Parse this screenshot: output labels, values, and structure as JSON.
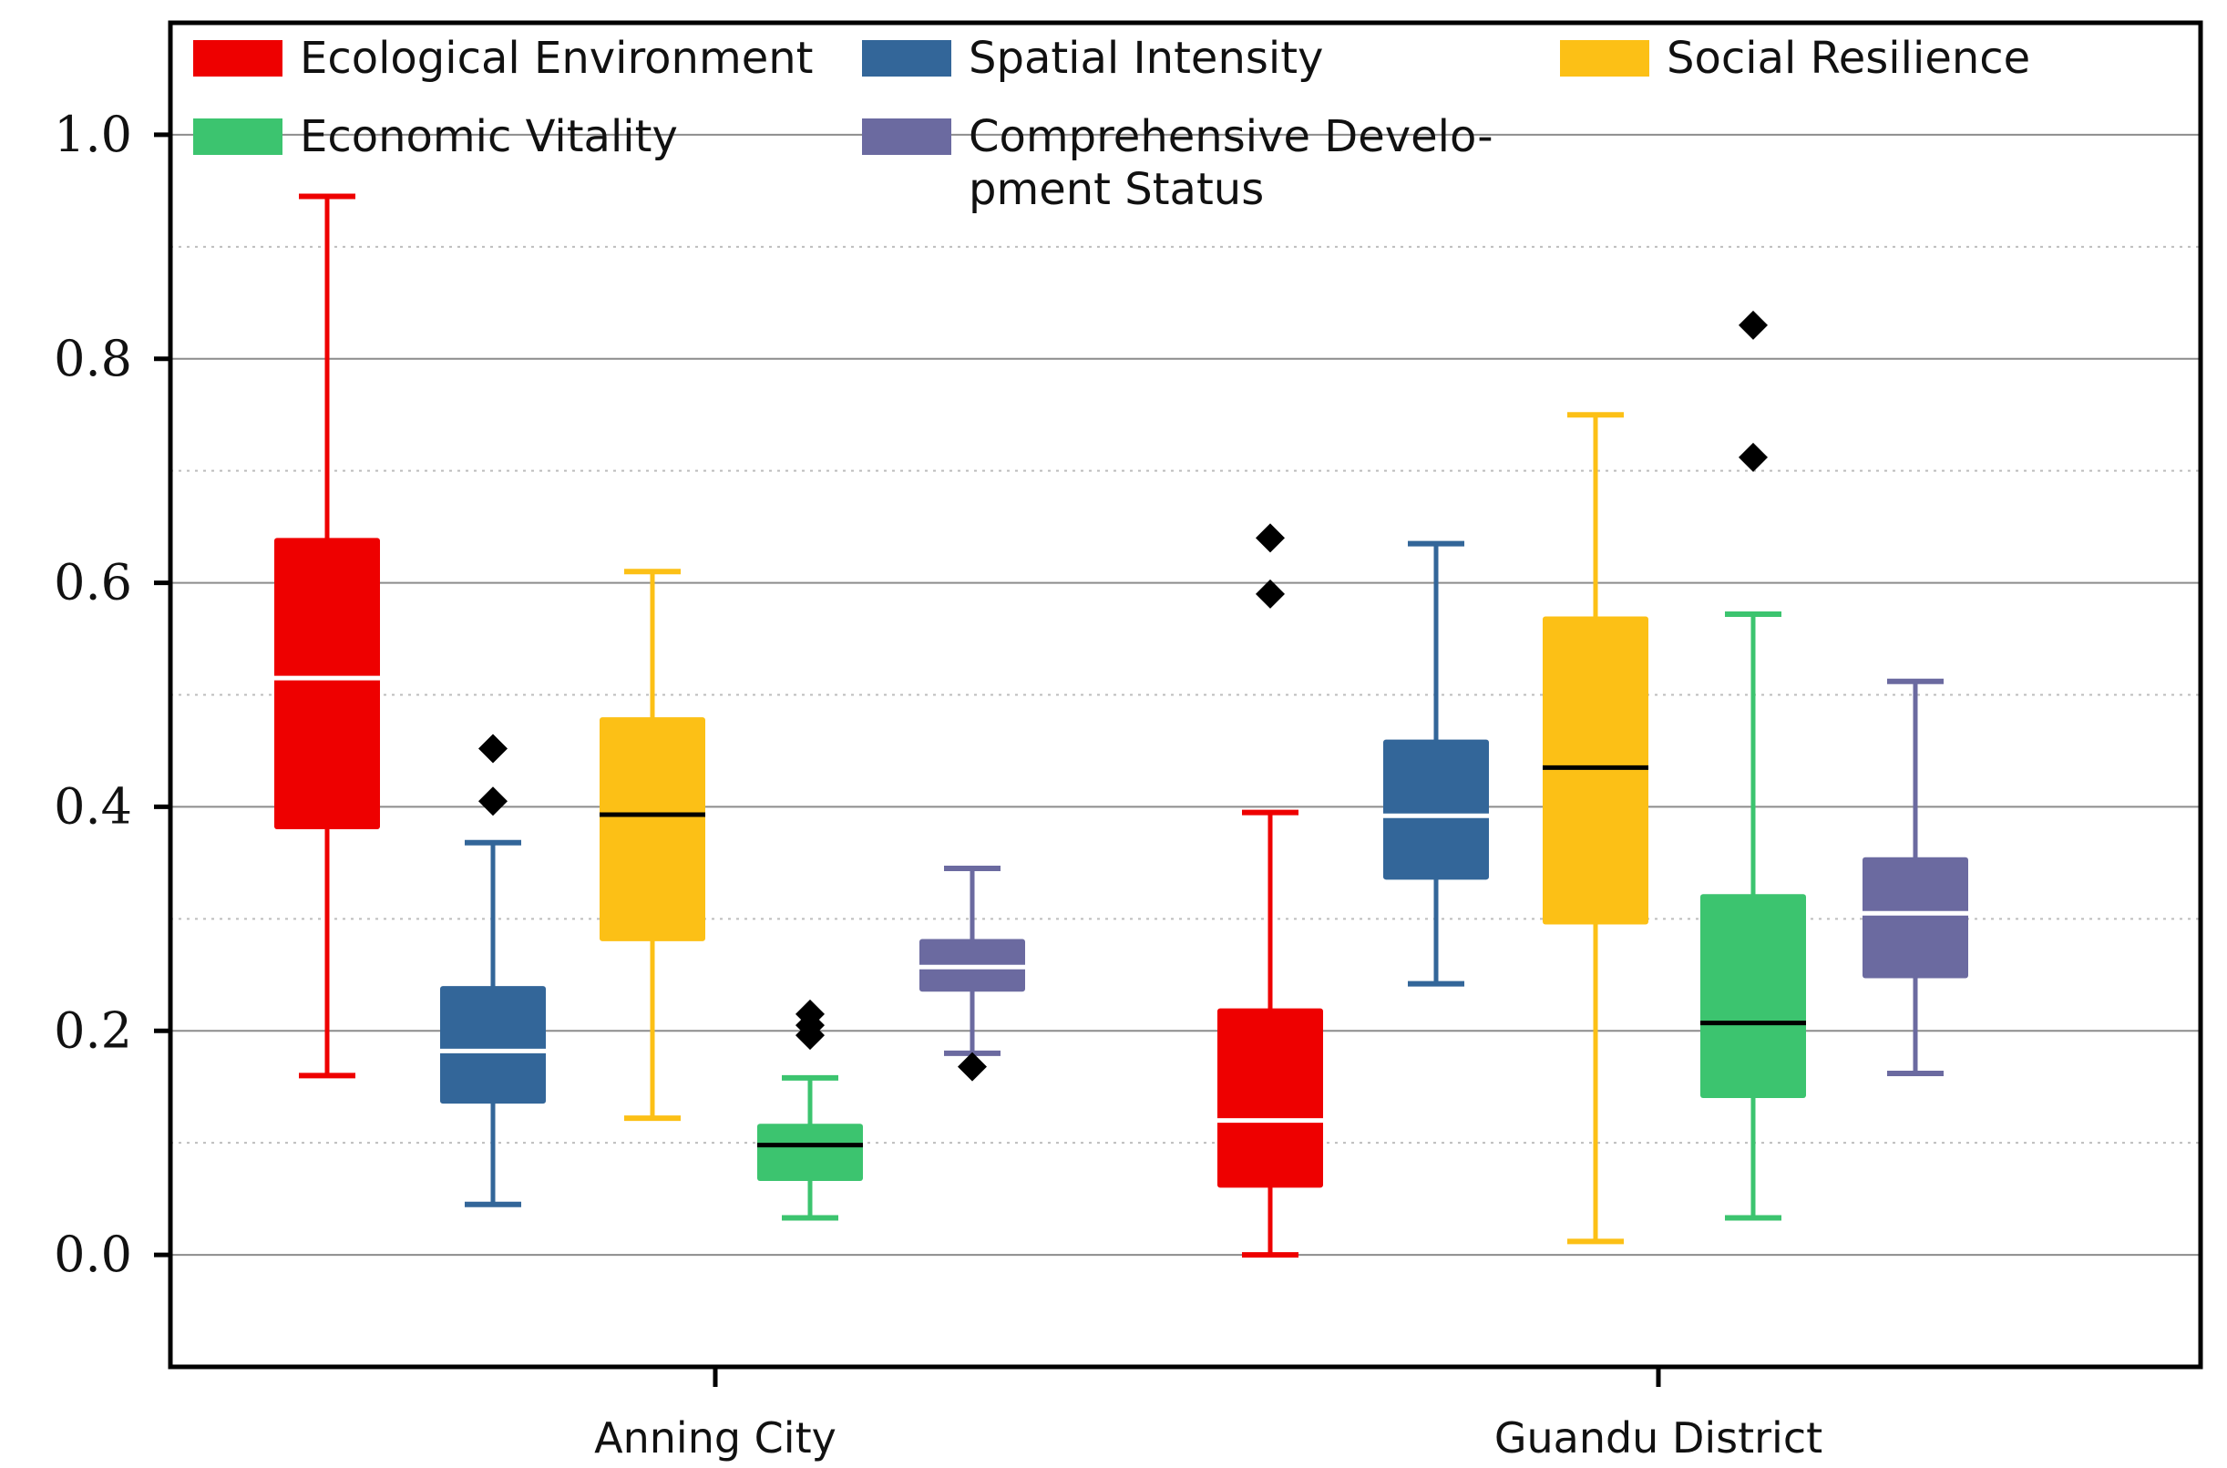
{
  "chart_data": {
    "type": "boxplot",
    "title": "",
    "xlabel": "",
    "ylabel": "",
    "ylim": [
      -0.1,
      1.1
    ],
    "yticks": [
      "0.0",
      "0.2",
      "0.4",
      "0.6",
      "0.8",
      "1.0"
    ],
    "ytick_values": [
      0.0,
      0.2,
      0.4,
      0.6,
      0.8,
      1.0
    ],
    "grid": "horizontal, solid at major ticks, dotted at minor ticks",
    "categories": [
      "Anning City",
      "Guandu District"
    ],
    "legend": {
      "placement": "top",
      "entries": [
        {
          "name": "Ecological Environment",
          "lines": [
            "Ecological Environment"
          ],
          "color": "#ee0000"
        },
        {
          "name": "Spatial Intensity",
          "lines": [
            "Spatial Intensity"
          ],
          "color": "#336699"
        },
        {
          "name": "Social Resilience",
          "lines": [
            "Social Resilience"
          ],
          "color": "#fcc016"
        },
        {
          "name": "Economic Vitality",
          "lines": [
            "Economic Vitality"
          ],
          "color": "#3cc46f"
        },
        {
          "name": "Comprehensive Development Status",
          "lines": [
            "Comprehensive Develo-",
            "pment Status"
          ],
          "color": "#6b6aa0"
        }
      ]
    },
    "series": [
      {
        "name": "Ecological Environment",
        "color": "#ee0000",
        "median_color": "#ffffff",
        "boxes": [
          {
            "category": "Anning City",
            "whisker_low": 0.16,
            "q1": 0.38,
            "median": 0.515,
            "q3": 0.64,
            "whisker_high": 0.945,
            "outliers": []
          },
          {
            "category": "Guandu District",
            "whisker_low": 0.0,
            "q1": 0.06,
            "median": 0.12,
            "q3": 0.22,
            "whisker_high": 0.395,
            "outliers": [
              0.59,
              0.64
            ]
          }
        ]
      },
      {
        "name": "Spatial Intensity",
        "color": "#336699",
        "median_color": "#ffffff",
        "boxes": [
          {
            "category": "Anning City",
            "whisker_low": 0.045,
            "q1": 0.135,
            "median": 0.182,
            "q3": 0.24,
            "whisker_high": 0.368,
            "outliers": [
              0.405,
              0.452
            ]
          },
          {
            "category": "Guandu District",
            "whisker_low": 0.242,
            "q1": 0.335,
            "median": 0.392,
            "q3": 0.46,
            "whisker_high": 0.635,
            "outliers": []
          }
        ]
      },
      {
        "name": "Social Resilience",
        "color": "#fcc016",
        "median_color": "#000000",
        "boxes": [
          {
            "category": "Anning City",
            "whisker_low": 0.122,
            "q1": 0.28,
            "median": 0.393,
            "q3": 0.48,
            "whisker_high": 0.61,
            "outliers": []
          },
          {
            "category": "Guandu District",
            "whisker_low": 0.012,
            "q1": 0.295,
            "median": 0.435,
            "q3": 0.57,
            "whisker_high": 0.75,
            "outliers": []
          }
        ]
      },
      {
        "name": "Economic Vitality",
        "color": "#3cc46f",
        "median_color": "#000000",
        "boxes": [
          {
            "category": "Anning City",
            "whisker_low": 0.033,
            "q1": 0.066,
            "median": 0.098,
            "q3": 0.117,
            "whisker_high": 0.158,
            "outliers": [
              0.196,
              0.205,
              0.215
            ]
          },
          {
            "category": "Guandu District",
            "whisker_low": 0.033,
            "q1": 0.14,
            "median": 0.207,
            "q3": 0.322,
            "whisker_high": 0.572,
            "outliers": [
              0.712,
              0.83
            ]
          }
        ]
      },
      {
        "name": "Comprehensive Development Status",
        "color": "#6b6aa0",
        "median_color": "#ffffff",
        "boxes": [
          {
            "category": "Anning City",
            "whisker_low": 0.18,
            "q1": 0.235,
            "median": 0.257,
            "q3": 0.282,
            "whisker_high": 0.345,
            "outliers": [
              0.168
            ]
          },
          {
            "category": "Guandu District",
            "whisker_low": 0.162,
            "q1": 0.247,
            "median": 0.305,
            "q3": 0.355,
            "whisker_high": 0.512,
            "outliers": []
          }
        ]
      }
    ]
  }
}
